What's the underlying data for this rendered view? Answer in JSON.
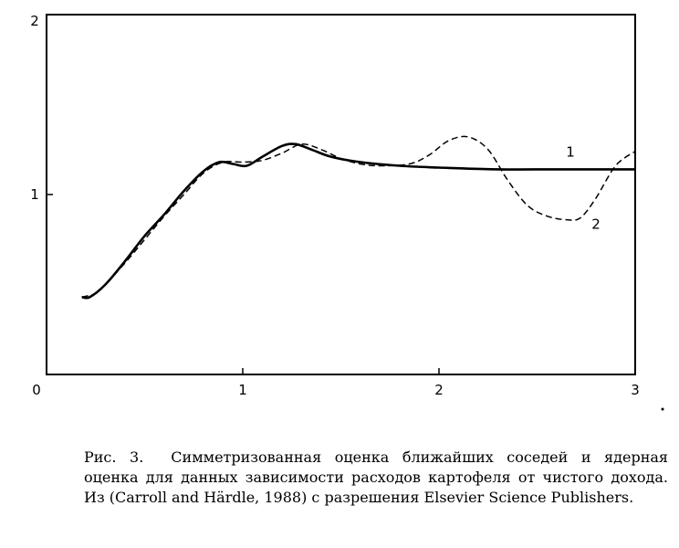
{
  "chart_data": {
    "type": "line",
    "title": "",
    "xlabel": "",
    "ylabel": "",
    "xlim": [
      0,
      3
    ],
    "ylim": [
      0,
      2
    ],
    "x_ticks": [
      0,
      1,
      2,
      3
    ],
    "x_tick_labels": [
      "0",
      "1",
      "2",
      "3"
    ],
    "y_ticks": [
      1,
      2
    ],
    "y_tick_labels": [
      "1",
      "2"
    ],
    "grid": false,
    "legend": "none",
    "series": [
      {
        "name": "1",
        "style": "solid",
        "x": [
          0.18,
          0.22,
          0.3,
          0.4,
          0.5,
          0.6,
          0.7,
          0.8,
          0.88,
          0.95,
          1.02,
          1.1,
          1.2,
          1.27,
          1.35,
          1.45,
          1.6,
          1.8,
          2.0,
          2.3,
          2.6,
          3.0
        ],
        "y": [
          0.43,
          0.43,
          0.5,
          0.63,
          0.77,
          0.89,
          1.02,
          1.13,
          1.18,
          1.17,
          1.16,
          1.21,
          1.27,
          1.28,
          1.25,
          1.21,
          1.18,
          1.16,
          1.15,
          1.14,
          1.14,
          1.14
        ]
      },
      {
        "name": "2",
        "style": "dashed",
        "x": [
          0.18,
          0.25,
          0.3,
          0.4,
          0.5,
          0.6,
          0.7,
          0.8,
          0.9,
          1.0,
          1.1,
          1.2,
          1.3,
          1.4,
          1.5,
          1.6,
          1.7,
          1.85,
          1.95,
          2.05,
          2.15,
          2.25,
          2.35,
          2.45,
          2.55,
          2.65,
          2.72,
          2.8,
          2.9,
          3.0
        ],
        "y": [
          0.43,
          0.45,
          0.5,
          0.62,
          0.75,
          0.88,
          1.0,
          1.12,
          1.18,
          1.18,
          1.19,
          1.23,
          1.28,
          1.25,
          1.2,
          1.17,
          1.16,
          1.17,
          1.22,
          1.3,
          1.32,
          1.25,
          1.08,
          0.94,
          0.88,
          0.86,
          0.87,
          0.98,
          1.16,
          1.24
        ]
      }
    ]
  },
  "caption": {
    "lead": "Рис. 3.",
    "text": "Симметризованная оценка ближайших соседей и ядерная оценка для данных зависимости расходов картофеля от чистого дохода. Из (Carroll and Härdle, 1988) с разрешения Elsevier Science Publishers."
  }
}
